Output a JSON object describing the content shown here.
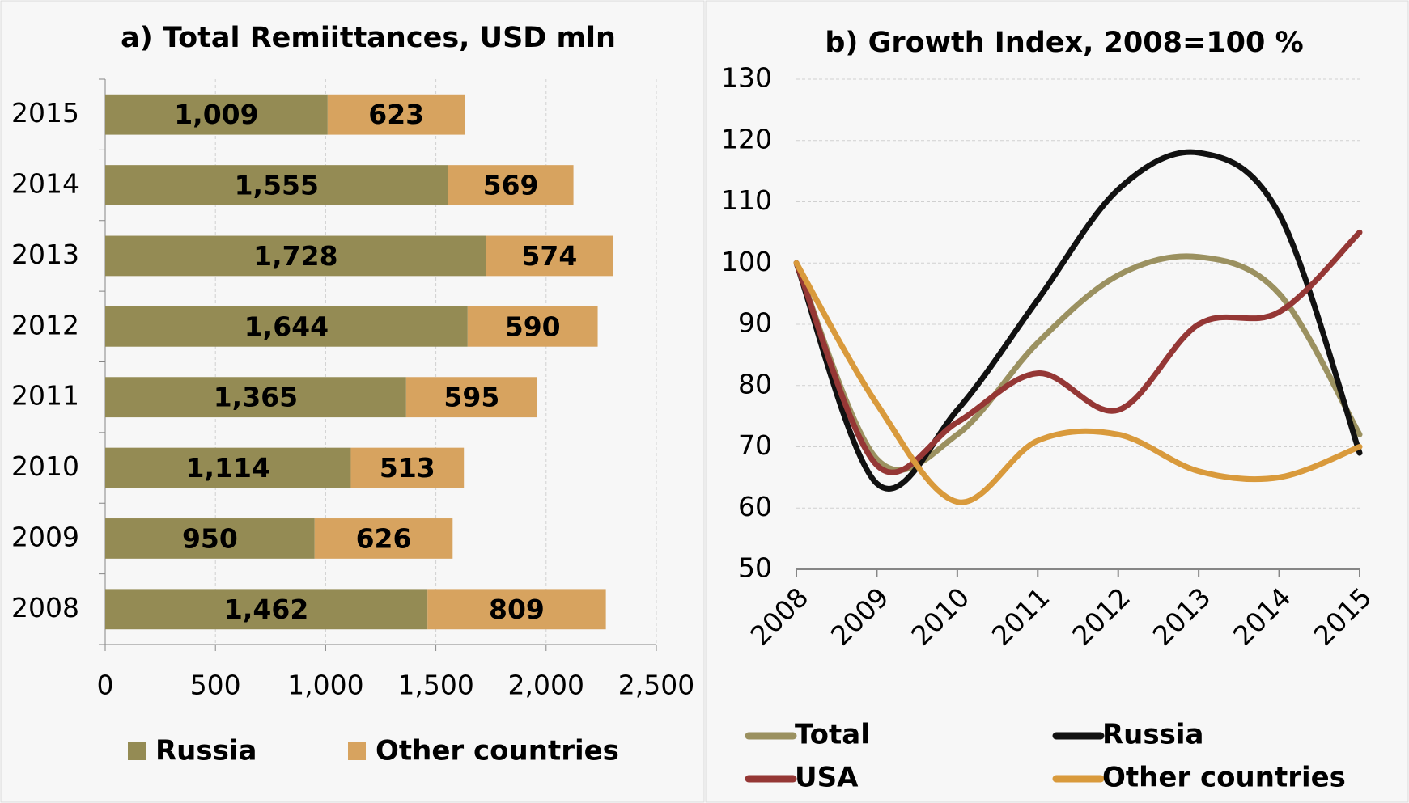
{
  "chart_data": [
    {
      "type": "bar",
      "orientation": "horizontal",
      "stacked": true,
      "title": "a) Total Remiittances, USD mln",
      "categories": [
        "2008",
        "2009",
        "2010",
        "2011",
        "2012",
        "2013",
        "2014",
        "2015"
      ],
      "series": [
        {
          "name": "Russia",
          "color": "#948b54",
          "values": [
            1462,
            950,
            1114,
            1365,
            1644,
            1728,
            1555,
            1009
          ],
          "value_labels": [
            "1,462",
            "950",
            "1,114",
            "1,365",
            "1,644",
            "1,728",
            "1,555",
            "1,009"
          ]
        },
        {
          "name": "Other countries",
          "color": "#d7a35f",
          "values": [
            809,
            626,
            513,
            595,
            590,
            574,
            569,
            623
          ]
        }
      ],
      "xlim": [
        0,
        2500
      ],
      "xticks": [
        0,
        500,
        {
          "value": 1000,
          "label": "1,000"
        },
        {
          "value": 1500,
          "label": "1,500"
        },
        {
          "value": 2000,
          "label": "2,000"
        },
        {
          "value": 2500,
          "label": "2,500"
        }
      ],
      "grid": true
    },
    {
      "type": "line",
      "smooth": true,
      "title": "b) Growth Index,  2008=100 %",
      "categories": [
        "2008",
        "2009",
        "2010",
        "2011",
        "2012",
        "2013",
        "2014",
        "2015"
      ],
      "series": [
        {
          "name": "Total",
          "color": "#9b9160",
          "values": [
            100,
            68,
            72,
            87,
            98,
            101,
            95,
            72
          ]
        },
        {
          "name": "Russia",
          "color": "#111111",
          "values": [
            100,
            64,
            76,
            94,
            112,
            118,
            108,
            69
          ]
        },
        {
          "name": "USA",
          "color": "#953735",
          "values": [
            100,
            67,
            74,
            82,
            76,
            90,
            92,
            105
          ]
        },
        {
          "name": "Other countries",
          "color": "#d99a3c",
          "values": [
            100,
            77,
            61,
            71,
            72,
            66,
            65,
            70
          ]
        }
      ],
      "ylim": [
        50,
        130
      ],
      "yticks": [
        50,
        60,
        70,
        80,
        90,
        100,
        110,
        120,
        130
      ],
      "grid": true
    }
  ]
}
